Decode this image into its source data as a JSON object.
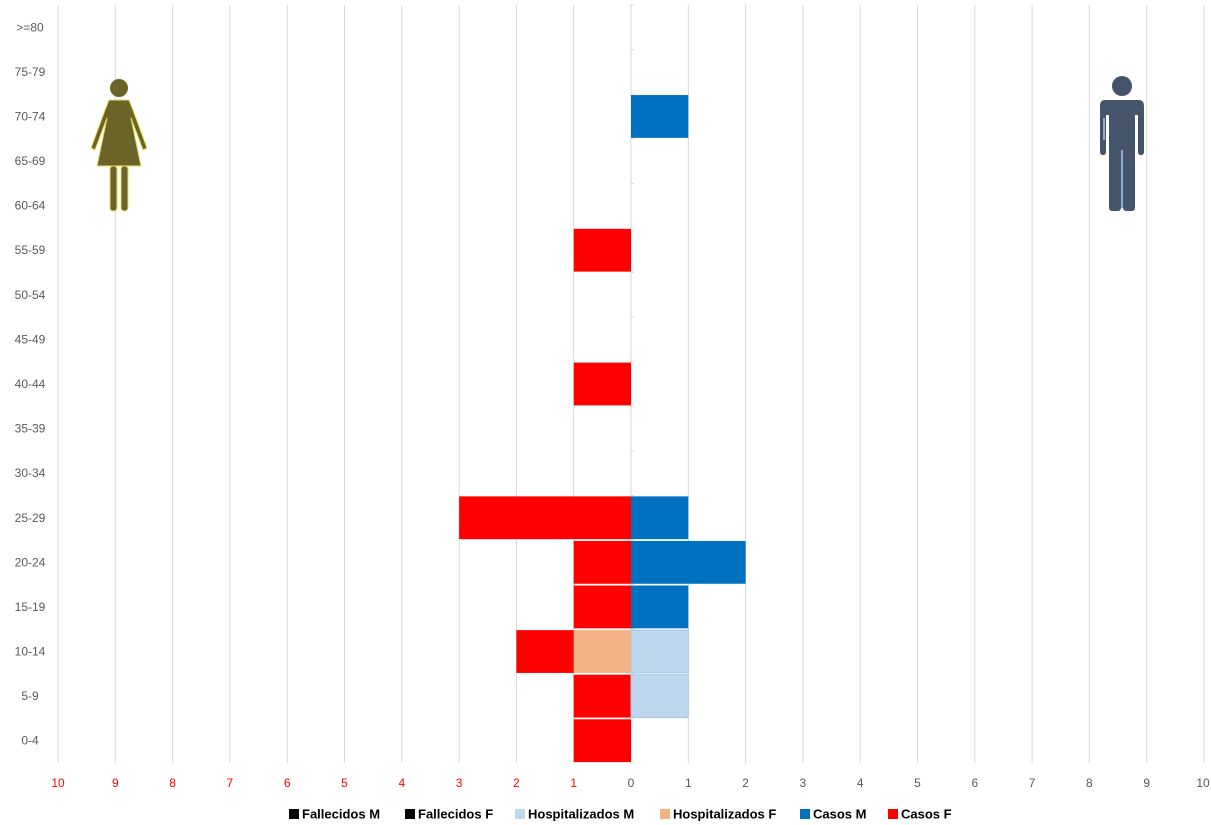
{
  "chart_data": {
    "type": "bar",
    "orientation": "horizontal",
    "layout": "population-pyramid",
    "categories": [
      "0-4",
      "5-9",
      "10-14",
      "15-19",
      "20-24",
      "25-29",
      "30-34",
      "35-39",
      "40-44",
      "45-49",
      "50-54",
      "55-59",
      "60-64",
      "65-69",
      "70-74",
      "75-79",
      ">=80"
    ],
    "xlim": [
      -10,
      10
    ],
    "x_ticks_left": [
      "10",
      "9",
      "8",
      "7",
      "6",
      "5",
      "4",
      "3",
      "2",
      "1"
    ],
    "x_ticks_right": [
      "0",
      "1",
      "2",
      "3",
      "4",
      "5",
      "6",
      "7",
      "8",
      "9",
      "10"
    ],
    "grid": "vertical",
    "legend_position": "bottom",
    "series": [
      {
        "name": "Fallecidos M",
        "side": "right",
        "color": "#000000",
        "values": [
          0,
          0,
          0,
          0,
          0,
          0,
          0,
          0,
          0,
          0,
          0,
          0,
          0,
          0,
          0,
          0,
          0
        ]
      },
      {
        "name": "Fallecidos F",
        "side": "left",
        "color": "#000000",
        "values": [
          0,
          0,
          0,
          0,
          0,
          0,
          0,
          0,
          0,
          0,
          0,
          0,
          0,
          0,
          0,
          0,
          0
        ]
      },
      {
        "name": "Hospitalizados M",
        "side": "right",
        "color": "#BDD7EE",
        "values": [
          0,
          1,
          1,
          0,
          0,
          0,
          0,
          0,
          0,
          0,
          0,
          0,
          0,
          0,
          0,
          0,
          0
        ]
      },
      {
        "name": "Hospitalizados F",
        "side": "left",
        "color": "#F4B183",
        "values": [
          0,
          0,
          1,
          0,
          0,
          0,
          0,
          0,
          0,
          0,
          0,
          0,
          0,
          0,
          0,
          0,
          0
        ]
      },
      {
        "name": "Casos M",
        "side": "right",
        "color": "#0070C0",
        "values": [
          0,
          0,
          0,
          1,
          2,
          1,
          0,
          0,
          0,
          0,
          0,
          0,
          0,
          0,
          1,
          0,
          0
        ]
      },
      {
        "name": "Casos F",
        "side": "left",
        "color": "#FF0000",
        "values": [
          1,
          1,
          1,
          1,
          1,
          3,
          0,
          0,
          1,
          0,
          0,
          1,
          0,
          0,
          0,
          0,
          0
        ]
      }
    ],
    "icons": {
      "left": "female-figure-icon",
      "right": "male-figure-icon"
    },
    "colors": {
      "grid": "#D9D9D9",
      "left_tick": "#FF0000",
      "right_tick": "#595959",
      "female_icon": "#6B6328",
      "male_icon": "#44546A"
    }
  }
}
